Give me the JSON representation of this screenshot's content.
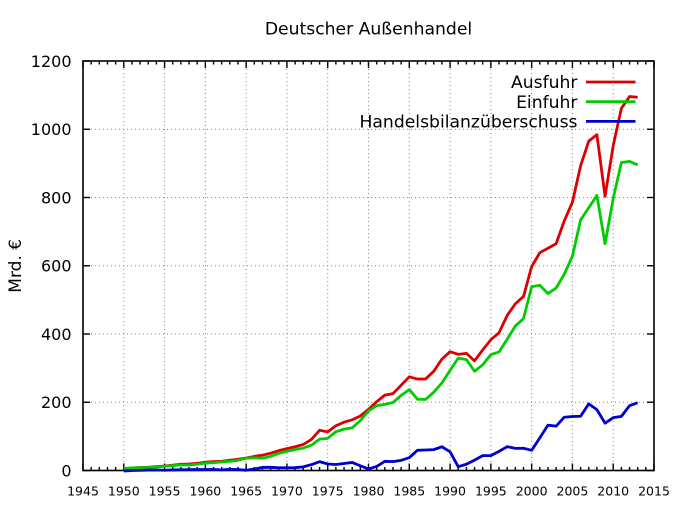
{
  "chart_data": {
    "type": "line",
    "title": "Deutscher Außenhandel",
    "xlabel": "",
    "ylabel": "Mrd. €",
    "xlim": [
      1945,
      2015
    ],
    "ylim": [
      0,
      1200
    ],
    "x_ticks": [
      1945,
      1950,
      1955,
      1960,
      1965,
      1970,
      1975,
      1980,
      1985,
      1990,
      1995,
      2000,
      2005,
      2010,
      2015
    ],
    "y_ticks": [
      0,
      200,
      400,
      600,
      800,
      1000,
      1200
    ],
    "x_minor_step": 1,
    "grid": "dotted gray lines at major ticks, both axes",
    "legend_position": "top-right inside plot, borderless, right-aligned labels with line samples",
    "background_color": "#ffffff",
    "axis_color": "#000000",
    "grid_color": "#888888",
    "x": [
      1950,
      1951,
      1952,
      1953,
      1954,
      1955,
      1956,
      1957,
      1958,
      1959,
      1960,
      1961,
      1962,
      1963,
      1964,
      1965,
      1966,
      1967,
      1968,
      1969,
      1970,
      1971,
      1972,
      1973,
      1974,
      1975,
      1976,
      1977,
      1978,
      1979,
      1980,
      1981,
      1982,
      1983,
      1984,
      1985,
      1986,
      1987,
      1988,
      1989,
      1990,
      1991,
      1992,
      1993,
      1994,
      1995,
      1996,
      1997,
      1998,
      1999,
      2000,
      2001,
      2002,
      2003,
      2004,
      2005,
      2006,
      2007,
      2008,
      2009,
      2010,
      2011,
      2012,
      2013
    ],
    "series": [
      {
        "name": "Ausfuhr",
        "color": "#dd0000",
        "values": [
          4.3,
          7.5,
          8.7,
          9.5,
          11.3,
          13.2,
          15.8,
          18.4,
          18.8,
          21.0,
          24.5,
          26.1,
          27.1,
          29.9,
          32.9,
          36.6,
          41.2,
          44.9,
          50.7,
          58.1,
          64.0,
          69.6,
          76.2,
          91.2,
          117.9,
          113.3,
          131.2,
          141.6,
          148.6,
          159.7,
          179.1,
          201.7,
          220.8,
          225.2,
          249.9,
          274.6,
          268.0,
          268.3,
          290.6,
          326.3,
          348.1,
          340.4,
          343.3,
          321.3,
          353.3,
          383.2,
          403.4,
          454.3,
          488.4,
          510.0,
          597.4,
          638.3,
          651.3,
          664.5,
          731.5,
          786.3,
          893.0,
          965.2,
          984.1,
          803.3,
          951.9,
          1061.2,
          1095.8,
          1093.8
        ]
      },
      {
        "name": "Einfuhr",
        "color": "#00cc00",
        "values": [
          5.8,
          7.6,
          8.3,
          8.2,
          9.9,
          12.5,
          14.2,
          16.2,
          16.2,
          18.3,
          21.8,
          22.7,
          25.3,
          26.7,
          29.9,
          36.0,
          37.0,
          35.9,
          41.4,
          50.0,
          56.0,
          61.4,
          65.6,
          74.1,
          91.9,
          94.2,
          113.6,
          121.2,
          125.0,
          146.0,
          174.5,
          189.9,
          193.9,
          199.3,
          220.1,
          237.1,
          208.9,
          208.3,
          229.4,
          256.7,
          293.2,
          329.2,
          325.0,
          290.8,
          309.7,
          339.6,
          347.3,
          384.5,
          423.5,
          444.8,
          538.3,
          542.8,
          518.5,
          534.5,
          575.4,
          628.1,
          734.0,
          769.9,
          805.8,
          664.6,
          797.1,
          902.5,
          905.9,
          895.2
        ]
      },
      {
        "name": "Handelsbilanzüberschuss",
        "color": "#0000cc",
        "values": [
          -1.5,
          -0.1,
          0.4,
          1.3,
          1.4,
          0.7,
          1.6,
          2.2,
          2.6,
          2.7,
          2.7,
          3.4,
          1.8,
          3.2,
          3.0,
          0.6,
          4.2,
          9.0,
          9.3,
          8.1,
          8.0,
          8.2,
          10.6,
          17.1,
          26.0,
          19.1,
          17.6,
          20.4,
          23.6,
          13.7,
          4.6,
          11.8,
          26.9,
          25.9,
          29.8,
          37.5,
          59.1,
          60.0,
          61.2,
          69.6,
          54.9,
          11.2,
          18.3,
          30.5,
          43.6,
          43.6,
          56.1,
          69.8,
          64.9,
          65.2,
          59.1,
          95.5,
          132.8,
          130.0,
          156.1,
          158.2,
          159.0,
          195.3,
          178.3,
          138.7,
          154.8,
          158.7,
          189.9,
          198.6
        ]
      }
    ]
  }
}
